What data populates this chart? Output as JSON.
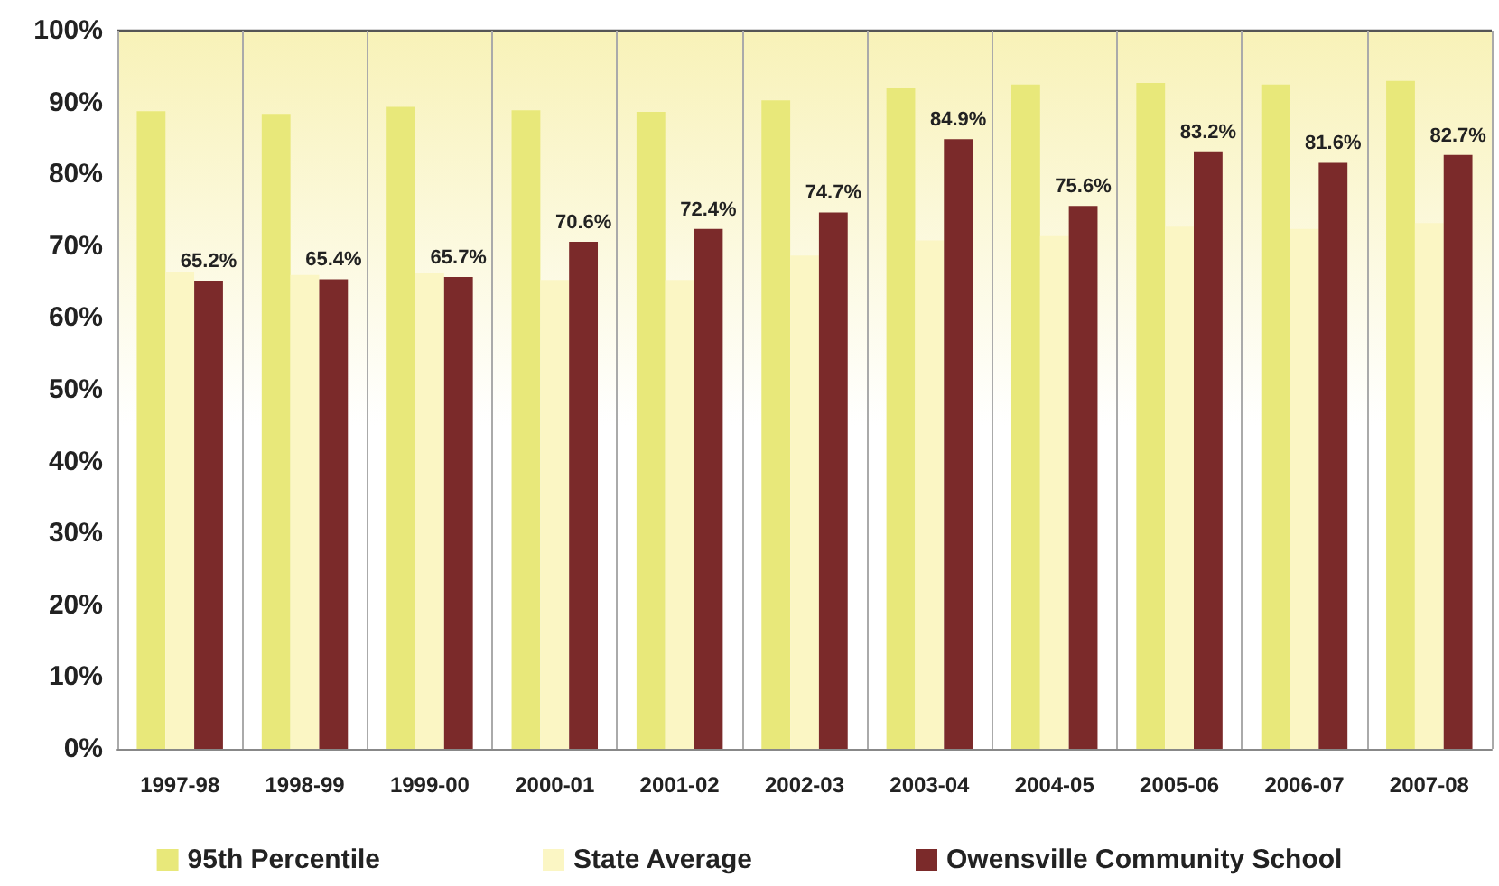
{
  "chart_data": {
    "type": "bar",
    "categories": [
      "1997-98",
      "1998-99",
      "1999-00",
      "2000-01",
      "2001-02",
      "2002-03",
      "2003-04",
      "2004-05",
      "2005-06",
      "2006-07",
      "2007-08"
    ],
    "series": [
      {
        "name": "95th Percentile",
        "color": "#e8e87a",
        "values": [
          88.8,
          88.4,
          89.4,
          88.9,
          88.7,
          90.3,
          92.0,
          92.5,
          92.7,
          92.5,
          93.0
        ]
      },
      {
        "name": "State Average",
        "color": "#fbf6c4",
        "values": [
          66.4,
          66.0,
          66.2,
          65.3,
          65.3,
          68.7,
          70.8,
          71.4,
          72.7,
          72.4,
          73.2
        ]
      },
      {
        "name": "Owensville Community School",
        "color": "#7b2a2a",
        "values": [
          65.2,
          65.4,
          65.7,
          70.6,
          72.4,
          74.7,
          84.9,
          75.6,
          83.2,
          81.6,
          82.7
        ],
        "value_labels": [
          "65.2%",
          "65.4%",
          "65.7%",
          "70.6%",
          "72.4%",
          "74.7%",
          "84.9%",
          "75.6%",
          "83.2%",
          "81.6%",
          "82.7%"
        ]
      }
    ],
    "ylim": [
      0,
      100
    ],
    "yticks": [
      {
        "value": 0,
        "label": "0%"
      },
      {
        "value": 10,
        "label": "10%"
      },
      {
        "value": 20,
        "label": "20%"
      },
      {
        "value": 30,
        "label": "30%"
      },
      {
        "value": 40,
        "label": "40%"
      },
      {
        "value": 50,
        "label": "50%"
      },
      {
        "value": 60,
        "label": "60%"
      },
      {
        "value": 70,
        "label": "70%"
      },
      {
        "value": 80,
        "label": "80%"
      },
      {
        "value": 90,
        "label": "90%"
      },
      {
        "value": 100,
        "label": "100%"
      }
    ],
    "grid": "x",
    "legend": "bottom"
  }
}
